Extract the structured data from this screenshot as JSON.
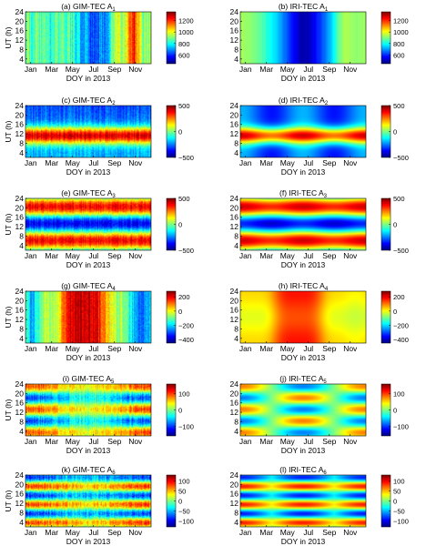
{
  "chart_data": [
    {
      "type": "heatmap",
      "panel": "a",
      "title_prefix": "(a) GIM-TEC A",
      "subscript": "1",
      "xlabel": "DOY in 2013",
      "ylabel": "UT (h)",
      "x_ticks": [
        "Jan",
        "Mar",
        "May",
        "Jul",
        "Sep",
        "Nov"
      ],
      "y_ticks": [
        "4",
        "8",
        "12",
        "16",
        "20",
        "24"
      ],
      "ylim": [
        2,
        24
      ],
      "colorbar": {
        "min": 450,
        "max": 1350,
        "ticks": [
          600,
          800,
          1000,
          1200
        ]
      },
      "colormap": "jet",
      "pattern": "gim_a1"
    },
    {
      "type": "heatmap",
      "panel": "b",
      "title_prefix": "(b) IRI-TEC A",
      "subscript": "1",
      "xlabel": "DOY in 2013",
      "ylabel": "",
      "x_ticks": [
        "Jan",
        "Mar",
        "May",
        "Jul",
        "Sep",
        "Nov"
      ],
      "y_ticks": [
        "4",
        "8",
        "12",
        "16",
        "20",
        "24"
      ],
      "ylim": [
        2,
        24
      ],
      "colorbar": {
        "min": 450,
        "max": 1350,
        "ticks": [
          600,
          800,
          1000,
          1200
        ]
      },
      "colormap": "jet",
      "pattern": "iri_a1"
    },
    {
      "type": "heatmap",
      "panel": "c",
      "title_prefix": "(c) GIM-TEC A",
      "subscript": "2",
      "xlabel": "DOY in 2013",
      "ylabel": "UT (h)",
      "x_ticks": [
        "Jan",
        "Mar",
        "May",
        "Jul",
        "Sep",
        "Nov"
      ],
      "y_ticks": [
        "4",
        "8",
        "12",
        "16",
        "20",
        "24"
      ],
      "ylim": [
        2,
        24
      ],
      "colorbar": {
        "min": -500,
        "max": 500,
        "ticks": [
          -500,
          0,
          500
        ]
      },
      "colormap": "jet",
      "pattern": "gim_a2"
    },
    {
      "type": "heatmap",
      "panel": "d",
      "title_prefix": "(d) IRI-TEC A",
      "subscript": "2",
      "xlabel": "DOY in 2013",
      "ylabel": "",
      "x_ticks": [
        "Jan",
        "Mar",
        "May",
        "Jul",
        "Sep",
        "Nov"
      ],
      "y_ticks": [
        "4",
        "8",
        "12",
        "16",
        "20",
        "24"
      ],
      "ylim": [
        2,
        24
      ],
      "colorbar": {
        "min": -500,
        "max": 500,
        "ticks": [
          -500,
          0,
          500
        ]
      },
      "colormap": "jet",
      "pattern": "iri_a2"
    },
    {
      "type": "heatmap",
      "panel": "e",
      "title_prefix": "(e) GIM-TEC A",
      "subscript": "3",
      "xlabel": "DOY in 2013",
      "ylabel": "UT (h)",
      "x_ticks": [
        "Jan",
        "Mar",
        "May",
        "Jul",
        "Sep",
        "Nov"
      ],
      "y_ticks": [
        "4",
        "8",
        "12",
        "16",
        "20",
        "24"
      ],
      "ylim": [
        2,
        24
      ],
      "colorbar": {
        "min": -500,
        "max": 500,
        "ticks": [
          -500,
          0,
          500
        ]
      },
      "colormap": "jet",
      "pattern": "gim_a3"
    },
    {
      "type": "heatmap",
      "panel": "f",
      "title_prefix": "(f) IRI-TEC A",
      "subscript": "3",
      "xlabel": "DOY in 2013",
      "ylabel": "",
      "x_ticks": [
        "Jan",
        "Mar",
        "May",
        "Jul",
        "Sep",
        "Nov"
      ],
      "y_ticks": [
        "4",
        "8",
        "12",
        "16",
        "20",
        "24"
      ],
      "ylim": [
        2,
        24
      ],
      "colorbar": {
        "min": -500,
        "max": 500,
        "ticks": [
          -500,
          0,
          500
        ]
      },
      "colormap": "jet",
      "pattern": "iri_a3"
    },
    {
      "type": "heatmap",
      "panel": "g",
      "title_prefix": "(g) GIM-TEC A",
      "subscript": "4",
      "xlabel": "DOY in 2013",
      "ylabel": "UT (h)",
      "x_ticks": [
        "Jan",
        "Mar",
        "May",
        "Jul",
        "Sep",
        "Nov"
      ],
      "y_ticks": [
        "4",
        "8",
        "12",
        "16",
        "20",
        "24"
      ],
      "ylim": [
        2,
        24
      ],
      "colorbar": {
        "min": -450,
        "max": 280,
        "ticks": [
          -400,
          -200,
          0,
          200
        ]
      },
      "colormap": "jet",
      "pattern": "gim_a4"
    },
    {
      "type": "heatmap",
      "panel": "h",
      "title_prefix": "(h) IRI-TEC A",
      "subscript": "4",
      "xlabel": "DOY in 2013",
      "ylabel": "",
      "x_ticks": [
        "Jan",
        "Mar",
        "May",
        "Jul",
        "Sep",
        "Nov"
      ],
      "y_ticks": [
        "4",
        "8",
        "12",
        "16",
        "20",
        "24"
      ],
      "ylim": [
        2,
        24
      ],
      "colorbar": {
        "min": -450,
        "max": 280,
        "ticks": [
          -400,
          -200,
          0,
          200
        ]
      },
      "colormap": "jet",
      "pattern": "iri_a4"
    },
    {
      "type": "heatmap",
      "panel": "i",
      "title_prefix": "(i) GIM-TEC A",
      "subscript": "5",
      "xlabel": "DOY in 2013",
      "ylabel": "UT (h)",
      "x_ticks": [
        "Jan",
        "Mar",
        "May",
        "Jul",
        "Sep",
        "Nov"
      ],
      "y_ticks": [
        "4",
        "8",
        "12",
        "16",
        "20",
        "24"
      ],
      "ylim": [
        2,
        24
      ],
      "colorbar": {
        "min": -160,
        "max": 160,
        "ticks": [
          -100,
          0,
          100
        ]
      },
      "colormap": "jet",
      "pattern": "gim_a5"
    },
    {
      "type": "heatmap",
      "panel": "j",
      "title_prefix": "(j) IRI-TEC A",
      "subscript": "5",
      "xlabel": "DOY in 2013",
      "ylabel": "",
      "x_ticks": [
        "Jan",
        "Mar",
        "May",
        "Jul",
        "Sep",
        "Nov"
      ],
      "y_ticks": [
        "4",
        "8",
        "12",
        "16",
        "20",
        "24"
      ],
      "ylim": [
        2,
        24
      ],
      "colorbar": {
        "min": -160,
        "max": 160,
        "ticks": [
          -100,
          0,
          100
        ]
      },
      "colormap": "jet",
      "pattern": "iri_a5"
    },
    {
      "type": "heatmap",
      "panel": "k",
      "title_prefix": "(k) GIM-TEC A",
      "subscript": "6",
      "xlabel": "DOY in 2013",
      "ylabel": "UT (h)",
      "x_ticks": [
        "Jan",
        "Mar",
        "May",
        "Jul",
        "Sep",
        "Nov"
      ],
      "y_ticks": [
        "4",
        "8",
        "12",
        "16",
        "20",
        "24"
      ],
      "ylim": [
        2,
        24
      ],
      "colorbar": {
        "min": -130,
        "max": 130,
        "ticks": [
          -100,
          -50,
          0,
          50,
          100
        ]
      },
      "colormap": "jet",
      "pattern": "gim_a6"
    },
    {
      "type": "heatmap",
      "panel": "l",
      "title_prefix": "(l) IRI-TEC A",
      "subscript": "6",
      "xlabel": "DOY in 2013",
      "ylabel": "",
      "x_ticks": [
        "Jan",
        "Mar",
        "May",
        "Jul",
        "Sep",
        "Nov"
      ],
      "y_ticks": [
        "4",
        "8",
        "12",
        "16",
        "20",
        "24"
      ],
      "ylim": [
        2,
        24
      ],
      "colorbar": {
        "min": -130,
        "max": 130,
        "ticks": [
          -100,
          -50,
          0,
          50,
          100
        ]
      },
      "colormap": "jet",
      "pattern": "iri_a6"
    }
  ]
}
